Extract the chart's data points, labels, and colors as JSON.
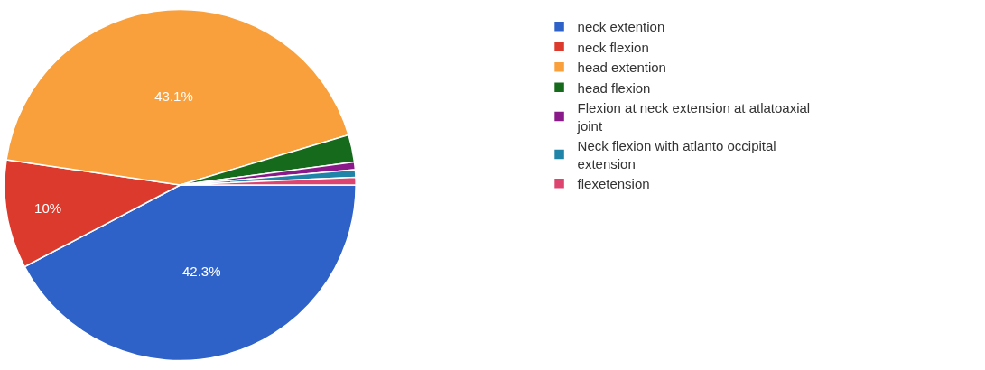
{
  "chart_data": {
    "type": "pie",
    "categories": [
      "neck extention",
      "neck flexion",
      "head extention",
      "head flexion",
      "Flexion at neck extension at atlatoaxial joint",
      "Neck flexion with atlanto occipital extension",
      "flexetension"
    ],
    "values": [
      42.3,
      10,
      43.1,
      2.5,
      0.7,
      0.7,
      0.7
    ],
    "colors": [
      "#2f62c9",
      "#dc3a2c",
      "#f9a03c",
      "#166a1c",
      "#8a1a8a",
      "#1f84a8",
      "#dd4470"
    ],
    "value_labels": [
      "42.3%",
      "10%",
      "43.1%",
      null,
      null,
      null,
      null
    ],
    "legend": "right"
  }
}
